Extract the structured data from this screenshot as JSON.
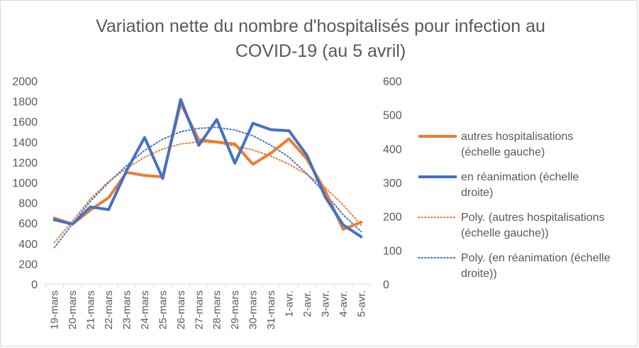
{
  "chart_data": {
    "type": "line",
    "title": {
      "line1": "Variation nette du nombre d'hospitalisés pour infection au",
      "line2": "COVID-19 (au 5 avril)"
    },
    "categories": [
      "19-mars",
      "20-mars",
      "21-mars",
      "22-mars",
      "23-mars",
      "24-mars",
      "25-mars",
      "26-mars",
      "27-mars",
      "28-mars",
      "29-mars",
      "30-mars",
      "31-mars",
      "1-avr.",
      "2-avr.",
      "3-avr.",
      "4-avr.",
      "5-avr."
    ],
    "y_left": {
      "min": 0,
      "max": 2000,
      "ticks": [
        "0",
        "200",
        "400",
        "600",
        "800",
        "1000",
        "1200",
        "1400",
        "1600",
        "1800",
        "2000"
      ]
    },
    "y_right": {
      "min": 0,
      "max": 600,
      "ticks": [
        "0",
        "100",
        "200",
        "300",
        "400",
        "500",
        "600"
      ]
    },
    "grid": false,
    "legend_position": "right",
    "series": [
      {
        "name": "autres hospitalisations (échelle gauche)",
        "legend_lines": [
          "autres hospitalisations",
          "(échelle gauche)"
        ],
        "axis": "left",
        "style": "solid",
        "color": "#ED7D31",
        "values": [
          650,
          590,
          730,
          850,
          1100,
          1070,
          1055,
          1780,
          1420,
          1400,
          1380,
          1180,
          1290,
          1430,
          1230,
          920,
          540,
          610
        ]
      },
      {
        "name": "en réanimation (échelle droite)",
        "legend_lines": [
          "en réanimation (échelle",
          "droite)"
        ],
        "axis": "right",
        "style": "solid",
        "color": "#4472C4",
        "values": [
          190,
          177,
          228,
          220,
          335,
          433,
          312,
          545,
          410,
          486,
          357,
          475,
          456,
          453,
          380,
          258,
          175,
          140
        ]
      },
      {
        "name": "Poly. (autres hospitalisations (échelle gauche))",
        "legend_lines": [
          "Poly. (autres hospitalisations",
          "(échelle gauche))"
        ],
        "axis": "left",
        "style": "dotted",
        "color": "#ED7D31",
        "values": [
          410,
          620,
          840,
          1010,
          1140,
          1250,
          1330,
          1380,
          1400,
          1390,
          1360,
          1320,
          1260,
          1180,
          1080,
          950,
          780,
          580
        ]
      },
      {
        "name": "Poly. (en réanimation (échelle droite))",
        "legend_lines": [
          "Poly. (en réanimation (échelle",
          "droite))"
        ],
        "axis": "right",
        "style": "dotted",
        "color": "#4472C4",
        "values": [
          108,
          178,
          245,
          300,
          350,
          395,
          428,
          450,
          460,
          463,
          455,
          438,
          410,
          375,
          325,
          268,
          205,
          155
        ]
      }
    ]
  }
}
